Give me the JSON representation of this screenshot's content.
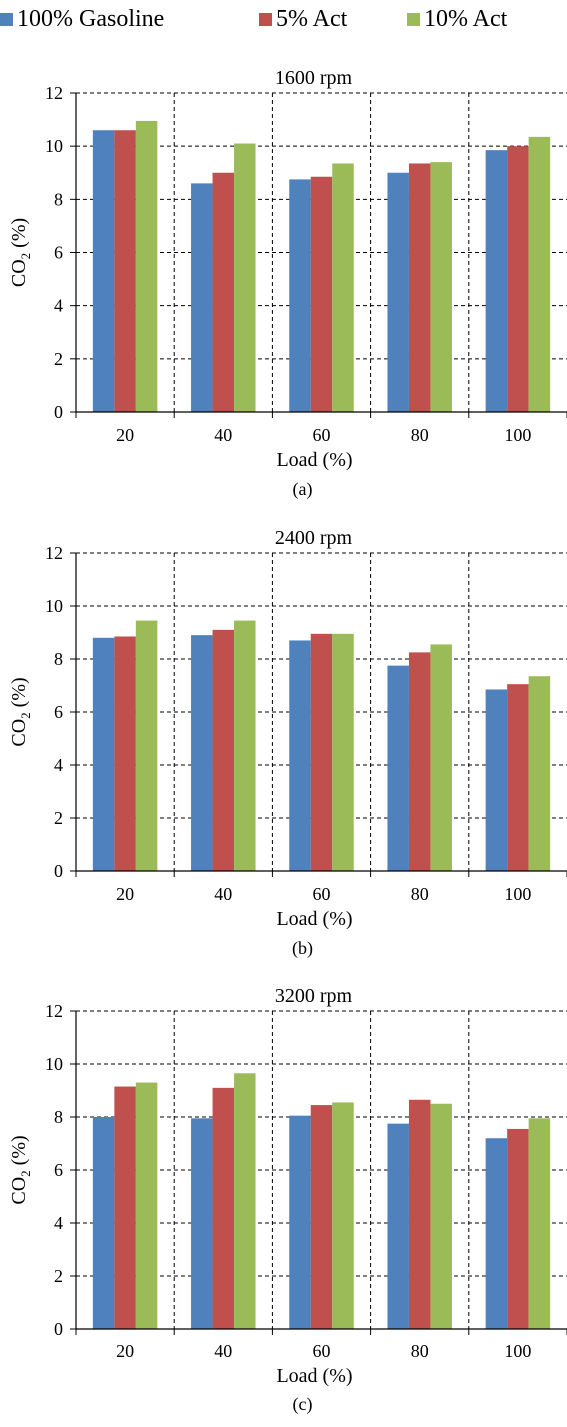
{
  "legend": [
    {
      "name": "100% Gasoline",
      "color": "#4f81bd"
    },
    {
      "name": "5% Act",
      "color": "#c0504d"
    },
    {
      "name": "10% Act",
      "color": "#9bbb59"
    }
  ],
  "chart_data": [
    {
      "type": "bar",
      "title": "1600 rpm",
      "caption": "(a)",
      "xlabel": "Load (%)",
      "ylabel_main": "CO",
      "ylabel_sub": "2",
      "ylabel_tail": " (%)",
      "ylim": [
        0,
        12
      ],
      "yticks": [
        0,
        2,
        4,
        6,
        8,
        10,
        12
      ],
      "grid": "dashed",
      "categories": [
        "20",
        "40",
        "60",
        "80",
        "100"
      ],
      "series": [
        {
          "name": "100% Gasoline",
          "color": "#4f81bd",
          "values": [
            10.6,
            8.6,
            8.75,
            9.0,
            9.85
          ]
        },
        {
          "name": "5% Act",
          "color": "#c0504d",
          "values": [
            10.6,
            9.0,
            8.85,
            9.35,
            10.0
          ]
        },
        {
          "name": "10% Act",
          "color": "#9bbb59",
          "values": [
            10.95,
            10.1,
            9.35,
            9.4,
            10.35
          ]
        }
      ]
    },
    {
      "type": "bar",
      "title": "2400 rpm",
      "caption": "(b)",
      "xlabel": "Load (%)",
      "ylabel_main": "CO",
      "ylabel_sub": "2",
      "ylabel_tail": " (%)",
      "ylim": [
        0,
        12
      ],
      "yticks": [
        0,
        2,
        4,
        6,
        8,
        10,
        12
      ],
      "grid": "dashed",
      "categories": [
        "20",
        "40",
        "60",
        "80",
        "100"
      ],
      "series": [
        {
          "name": "100% Gasoline",
          "color": "#4f81bd",
          "values": [
            8.8,
            8.9,
            8.7,
            7.75,
            6.85
          ]
        },
        {
          "name": "5% Act",
          "color": "#c0504d",
          "values": [
            8.85,
            9.1,
            8.95,
            8.25,
            7.05
          ]
        },
        {
          "name": "10% Act",
          "color": "#9bbb59",
          "values": [
            9.45,
            9.45,
            8.95,
            8.55,
            7.35
          ]
        }
      ]
    },
    {
      "type": "bar",
      "title": "3200 rpm",
      "caption": "(c)",
      "xlabel": "Load (%)",
      "ylabel_main": "CO",
      "ylabel_sub": "2",
      "ylabel_tail": " (%)",
      "ylim": [
        0,
        12
      ],
      "yticks": [
        0,
        2,
        4,
        6,
        8,
        10,
        12
      ],
      "grid": "dashed",
      "categories": [
        "20",
        "40",
        "60",
        "80",
        "100"
      ],
      "series": [
        {
          "name": "100% Gasoline",
          "color": "#4f81bd",
          "values": [
            8.0,
            7.95,
            8.05,
            7.75,
            7.2
          ]
        },
        {
          "name": "5% Act",
          "color": "#c0504d",
          "values": [
            9.15,
            9.1,
            8.45,
            8.65,
            7.55
          ]
        },
        {
          "name": "10% Act",
          "color": "#9bbb59",
          "values": [
            9.3,
            9.65,
            8.55,
            8.5,
            7.95
          ]
        }
      ]
    }
  ]
}
